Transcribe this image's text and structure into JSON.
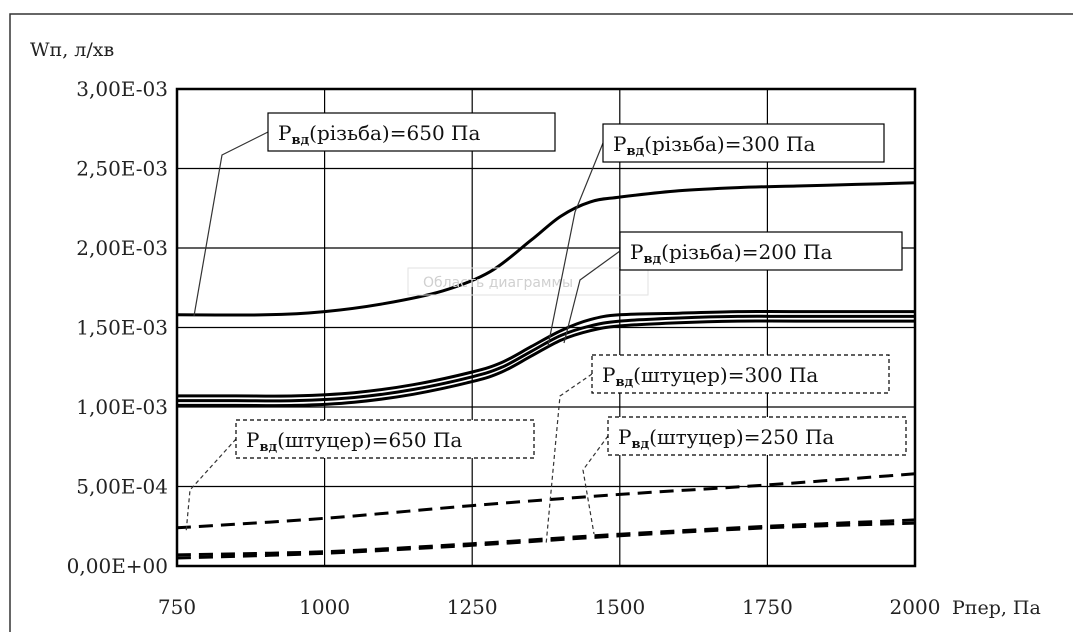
{
  "chart_data": {
    "type": "line",
    "ylabel": "Wп, л/хв",
    "xlabel": "Рпер, Па",
    "plot_area_placeholder": "Область диаграммы",
    "xlim": [
      750,
      2000
    ],
    "ylim": [
      0,
      0.003
    ],
    "x_ticks": [
      750,
      1000,
      1250,
      1500,
      1750,
      2000
    ],
    "x_tick_labels": [
      "750",
      "1000",
      "1250",
      "1500",
      "1750",
      "2000"
    ],
    "y_ticks": [
      0,
      0.0005,
      0.001,
      0.0015,
      0.002,
      0.0025,
      0.003
    ],
    "y_tick_labels": [
      "0,00E+00",
      "5,00E-04",
      "1,00E-03",
      "1,50E-03",
      "2,00E-03",
      "2,50E-03",
      "3,00E-03"
    ],
    "grid": true,
    "series": [
      {
        "key": "r650",
        "label_main": "Р",
        "label_sub": "вд",
        "label_rest": "(різьба)=650 Па",
        "style": "solid",
        "x": [
          750,
          900,
          1000,
          1100,
          1200,
          1280,
          1350,
          1400,
          1450,
          1500,
          1600,
          1700,
          1800,
          1900,
          2000
        ],
        "y": [
          0.00158,
          0.00158,
          0.0016,
          0.00165,
          0.00173,
          0.00185,
          0.00205,
          0.0022,
          0.00229,
          0.00232,
          0.00236,
          0.00238,
          0.00239,
          0.0024,
          0.00241
        ]
      },
      {
        "key": "r300",
        "label_main": "Р",
        "label_sub": "вд",
        "label_rest": "(різьба)=300 Па",
        "style": "solid",
        "x": [
          750,
          850,
          950,
          1050,
          1150,
          1250,
          1300,
          1350,
          1400,
          1450,
          1500,
          1600,
          1700,
          1800,
          2000
        ],
        "y": [
          0.00107,
          0.00107,
          0.00107,
          0.00109,
          0.00114,
          0.00122,
          0.00128,
          0.00138,
          0.00148,
          0.00155,
          0.00158,
          0.00159,
          0.0016,
          0.0016,
          0.0016
        ]
      },
      {
        "key": "r200",
        "label_main": "Р",
        "label_sub": "вд",
        "label_rest": "(різьба)=200 Па",
        "style": "solid",
        "x": [
          750,
          850,
          950,
          1050,
          1150,
          1250,
          1300,
          1350,
          1400,
          1450,
          1500,
          1600,
          1700,
          1800,
          2000
        ],
        "y": [
          0.00104,
          0.00104,
          0.00104,
          0.00106,
          0.00111,
          0.00119,
          0.00125,
          0.00135,
          0.00145,
          0.00151,
          0.00154,
          0.00156,
          0.00157,
          0.00157,
          0.00157
        ]
      },
      {
        "key": "r_lower",
        "label_main": "",
        "label_sub": "",
        "label_rest": "",
        "style": "solid",
        "x": [
          750,
          850,
          950,
          1050,
          1150,
          1250,
          1300,
          1350,
          1400,
          1450,
          1500,
          1600,
          1700,
          1800,
          2000
        ],
        "y": [
          0.00101,
          0.00101,
          0.00101,
          0.00103,
          0.00108,
          0.00116,
          0.00122,
          0.00132,
          0.00142,
          0.00148,
          0.00151,
          0.00153,
          0.00154,
          0.00154,
          0.00154
        ]
      },
      {
        "key": "s650",
        "label_main": "Р",
        "label_sub": "вд",
        "label_rest": "(штуцер)=650 Па",
        "style": "dashed",
        "x": [
          750,
          1000,
          1250,
          1500,
          1750,
          2000
        ],
        "y": [
          0.00024,
          0.0003,
          0.00038,
          0.00045,
          0.00051,
          0.00058
        ]
      },
      {
        "key": "s300",
        "label_main": "Р",
        "label_sub": "вд",
        "label_rest": "(штуцер)=300 Па",
        "style": "dashed",
        "x": [
          750,
          1000,
          1250,
          1500,
          1750,
          2000
        ],
        "y": [
          7e-05,
          9e-05,
          0.00014,
          0.0002,
          0.00025,
          0.00029
        ]
      },
      {
        "key": "s250",
        "label_main": "Р",
        "label_sub": "вд",
        "label_rest": "(штуцер)=250 Па",
        "style": "dashed",
        "x": [
          750,
          1000,
          1250,
          1500,
          1750,
          2000
        ],
        "y": [
          5e-05,
          8e-05,
          0.00013,
          0.00019,
          0.00024,
          0.00027
        ]
      }
    ],
    "annotations": [
      {
        "series": "r650",
        "style": "solid",
        "box_anchor": "top-left",
        "point": [
          760,
          0.00158
        ]
      },
      {
        "series": "r300",
        "style": "solid",
        "box_anchor": "top-right",
        "point": [
          1385,
          0.00135
        ]
      },
      {
        "series": "r200",
        "style": "solid",
        "box_anchor": "middle-right",
        "point": [
          1405,
          0.00142
        ]
      },
      {
        "series": "s650",
        "style": "dashed",
        "box_anchor": "lower-left",
        "point": [
          763,
          0.00024
        ]
      },
      {
        "series": "s300",
        "style": "dashed",
        "box_anchor": "lower-right",
        "point": [
          1385,
          0.00016
        ]
      },
      {
        "series": "s250",
        "style": "dashed",
        "box_anchor": "bottom-right",
        "point": [
          1440,
          0.00019
        ]
      }
    ]
  }
}
